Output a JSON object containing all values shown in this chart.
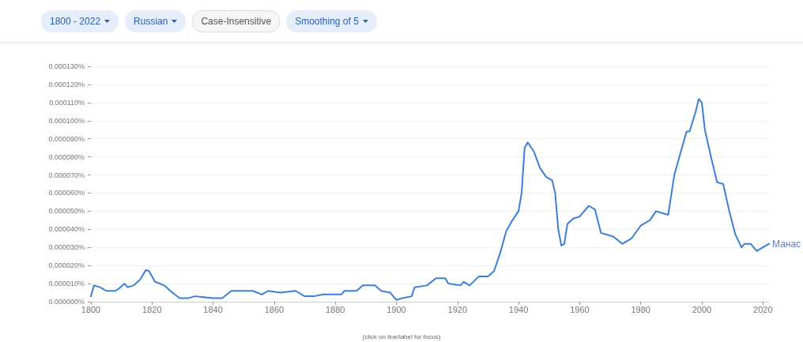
{
  "chart_data": {
    "type": "line",
    "annotations": [
      "1800 - 2022",
      "Russian",
      "Case-Insensitive",
      "Smoothing of 5",
      "(click on line/label for focus)"
    ],
    "x": [
      1800,
      1801,
      1803,
      1805,
      1808,
      1809,
      1811,
      1812,
      1814,
      1816,
      1818,
      1819,
      1821,
      1824,
      1826,
      1829,
      1832,
      1834,
      1840,
      1843,
      1846,
      1850,
      1853,
      1856,
      1858,
      1862,
      1867,
      1870,
      1873,
      1876,
      1880,
      1882,
      1883,
      1885,
      1887,
      1889,
      1893,
      1895,
      1898,
      1900,
      1902,
      1905,
      1906,
      1910,
      1913,
      1916,
      1917,
      1921,
      1922,
      1924,
      1927,
      1930,
      1932,
      1934,
      1936,
      1938,
      1940,
      1941,
      1942,
      1943,
      1945,
      1947,
      1949,
      1951,
      1952,
      1953,
      1954,
      1955,
      1956,
      1958,
      1960,
      1961,
      1963,
      1965,
      1967,
      1969,
      1971,
      1974,
      1977,
      1980,
      1983,
      1985,
      1989,
      1991,
      1993,
      1995,
      1996,
      1998,
      1999,
      2000,
      2001,
      2003,
      2005,
      2007,
      2009,
      2011,
      2013,
      2014,
      2016,
      2018,
      2020,
      2022
    ],
    "series": [
      {
        "name": "Манас",
        "color": "#3d7fd6",
        "values": [
          3e-06,
          9e-06,
          8e-06,
          6e-06,
          6e-06,
          7e-06,
          1e-05,
          8e-06,
          9e-06,
          1.2e-05,
          1.75e-05,
          1.7e-05,
          1.1e-05,
          9e-06,
          6e-06,
          2e-06,
          2e-06,
          3e-06,
          2e-06,
          2e-06,
          6e-06,
          6e-06,
          6e-06,
          4e-06,
          6e-06,
          5e-06,
          6e-06,
          3e-06,
          3e-06,
          4e-06,
          4e-06,
          4e-06,
          6e-06,
          6e-06,
          6e-06,
          9e-06,
          9e-06,
          6e-06,
          5e-06,
          1e-06,
          2e-06,
          3e-06,
          8e-06,
          9e-06,
          1.3e-05,
          1.3e-05,
          1e-05,
          9e-06,
          1.1e-05,
          9e-06,
          1.4e-05,
          1.4e-05,
          1.7e-05,
          2.7e-05,
          3.9e-05,
          4.5e-05,
          5e-05,
          6e-05,
          8.5e-05,
          8.8e-05,
          8.3e-05,
          7.4e-05,
          6.9e-05,
          6.7e-05,
          6e-05,
          4e-05,
          3.1e-05,
          3.2e-05,
          4.3e-05,
          4.6e-05,
          4.7e-05,
          4.9e-05,
          5.3e-05,
          5.1e-05,
          3.8e-05,
          3.7e-05,
          3.6e-05,
          3.2e-05,
          3.5e-05,
          4.2e-05,
          4.5e-05,
          5e-05,
          4.8e-05,
          7e-05,
          8.2e-05,
          9.4e-05,
          9.4e-05,
          0.000105,
          0.000112,
          0.00011,
          9.5e-05,
          8e-05,
          6.6e-05,
          6.5e-05,
          5e-05,
          3.7e-05,
          3e-05,
          3.2e-05,
          3.2e-05,
          2.8e-05,
          3e-05,
          3.2e-05
        ]
      }
    ],
    "xlim": [
      1800,
      2022
    ],
    "xticks": [
      1800,
      1820,
      1840,
      1860,
      1880,
      1900,
      1920,
      1940,
      1960,
      1980,
      2000,
      2020
    ],
    "ylim": [
      0,
      0.00013
    ],
    "yticks": [
      {
        "value": 0,
        "label": "0.000000%"
      },
      {
        "value": 1e-05,
        "label": "0.000010%"
      },
      {
        "value": 2e-05,
        "label": "0.000020%"
      },
      {
        "value": 3e-05,
        "label": "0.000030%"
      },
      {
        "value": 4e-05,
        "label": "0.000040%"
      },
      {
        "value": 5e-05,
        "label": "0.000050%"
      },
      {
        "value": 6e-05,
        "label": "0.000060%"
      },
      {
        "value": 7e-05,
        "label": "0.000070%"
      },
      {
        "value": 8e-05,
        "label": "0.000080%"
      },
      {
        "value": 9e-05,
        "label": "0.000090%"
      },
      {
        "value": 0.0001,
        "label": "0.000100%"
      },
      {
        "value": 0.00011,
        "label": "0.000110%"
      },
      {
        "value": 0.00012,
        "label": "0.000120%"
      },
      {
        "value": 0.00013,
        "label": "0.000130%"
      }
    ],
    "grid": "y",
    "legend": false,
    "marker": "none",
    "line_style": "solid"
  }
}
